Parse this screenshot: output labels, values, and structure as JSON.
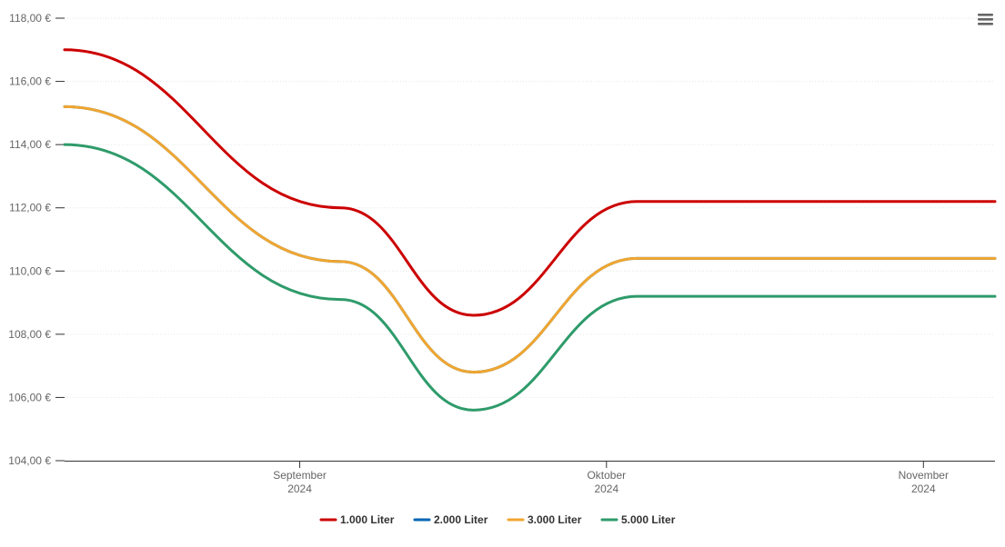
{
  "chart_data": {
    "type": "line",
    "title": "",
    "xlabel": "",
    "ylabel": "",
    "ylim": [
      104,
      118
    ],
    "y_ticks": [
      {
        "value": 104,
        "label": "104,00 €"
      },
      {
        "value": 106,
        "label": "106,00 €"
      },
      {
        "value": 108,
        "label": "108,00 €"
      },
      {
        "value": 110,
        "label": "110,00 €"
      },
      {
        "value": 112,
        "label": "112,00 €"
      },
      {
        "value": 114,
        "label": "114,00 €"
      },
      {
        "value": 116,
        "label": "116,00 €"
      },
      {
        "value": 118,
        "label": "118,00 €"
      }
    ],
    "x_range": [
      "2024-08-09",
      "2024-11-08"
    ],
    "x_ticks": [
      {
        "date": "2024-09-01",
        "month": "September",
        "year": "2024"
      },
      {
        "date": "2024-10-01",
        "month": "Oktober",
        "year": "2024"
      },
      {
        "date": "2024-11-01",
        "month": "November",
        "year": "2024"
      }
    ],
    "x": [
      "2024-08-09",
      "2024-09-05",
      "2024-09-18",
      "2024-10-04",
      "2024-11-08"
    ],
    "series": [
      {
        "name": "1.000 Liter",
        "color": "#cc0000",
        "values": [
          117.0,
          112.0,
          108.6,
          112.2,
          112.2
        ]
      },
      {
        "name": "2.000 Liter",
        "color": "#0066b3",
        "values": [
          115.2,
          110.3,
          106.8,
          110.4,
          110.4
        ]
      },
      {
        "name": "3.000 Liter",
        "color": "#f0a630",
        "values": [
          115.2,
          110.3,
          106.8,
          110.4,
          110.4
        ]
      },
      {
        "name": "5.000 Liter",
        "color": "#2e9b6a",
        "values": [
          114.0,
          109.1,
          105.6,
          109.2,
          109.2
        ]
      }
    ],
    "grid": true,
    "legend_position": "bottom-center"
  },
  "menu_icon": "hamburger-menu-icon"
}
